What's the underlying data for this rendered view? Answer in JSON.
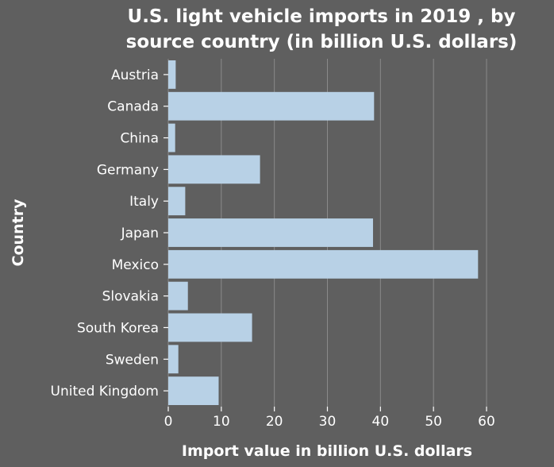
{
  "chart_data": {
    "type": "bar",
    "orientation": "horizontal",
    "title_line1": "U.S. light vehicle imports in 2019 , by",
    "title_line2": "source country (in billion U.S. dollars)",
    "xlabel": "Import value in billion U.S. dollars",
    "ylabel": "Country",
    "categories": [
      "Austria",
      "Canada",
      "China",
      "Germany",
      "Italy",
      "Japan",
      "Mexico",
      "Slovakia",
      "South Korea",
      "Sweden",
      "United Kingdom"
    ],
    "values": [
      1.4,
      38.8,
      1.3,
      17.3,
      3.2,
      38.6,
      58.4,
      3.7,
      15.8,
      1.9,
      9.5
    ],
    "xlim": [
      0,
      60
    ],
    "xticks": [
      "0",
      "10",
      "20",
      "30",
      "40",
      "50",
      "60"
    ],
    "grid": "vertical",
    "bar_color": "#b8d1e6",
    "background_color": "#5f5f5f"
  }
}
